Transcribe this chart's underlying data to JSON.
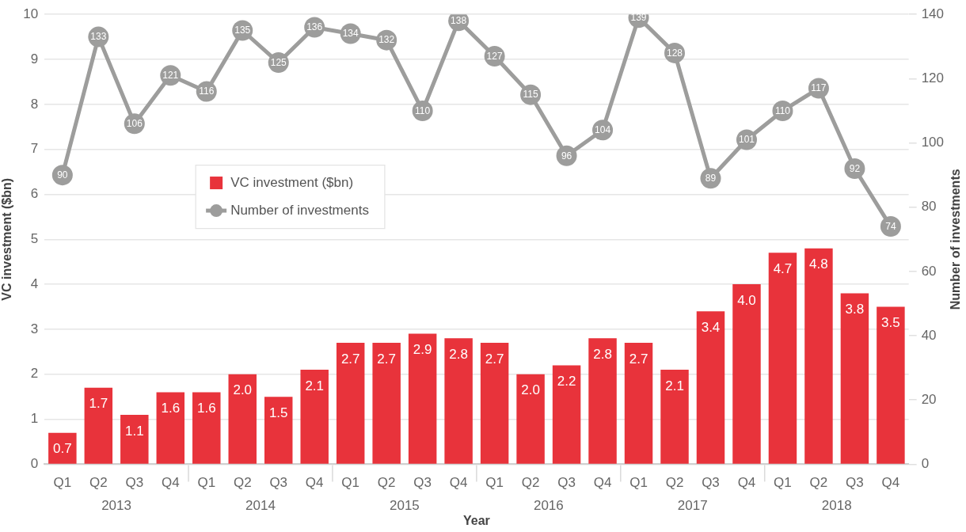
{
  "chart_data": {
    "type": "bar",
    "xlabel": "Year",
    "ylabel": "VC investment ($bn)",
    "y2label": "Number of investments",
    "categories": [
      "Q1",
      "Q2",
      "Q3",
      "Q4",
      "Q1",
      "Q2",
      "Q3",
      "Q4",
      "Q1",
      "Q2",
      "Q3",
      "Q4",
      "Q1",
      "Q2",
      "Q3",
      "Q4",
      "Q1",
      "Q2",
      "Q3",
      "Q4",
      "Q1",
      "Q2",
      "Q3",
      "Q4"
    ],
    "annotations": [
      "2013",
      "2014",
      "2015",
      "2016",
      "2017",
      "2018"
    ],
    "series": [
      {
        "name": "VC investment ($bn)",
        "type": "bar",
        "color": "#e8333b",
        "values": [
          0.7,
          1.7,
          1.1,
          1.6,
          1.6,
          2.0,
          1.5,
          2.1,
          2.7,
          2.7,
          2.9,
          2.8,
          2.7,
          2.0,
          2.2,
          2.8,
          2.7,
          2.1,
          3.4,
          4.0,
          4.7,
          4.8,
          3.8,
          3.5
        ],
        "value_labels": [
          "0.7",
          "1.7",
          "1.1",
          "1.6",
          "1.6",
          "2.0",
          "1.5",
          "2.1",
          "2.7",
          "2.7",
          "2.9",
          "2.8",
          "2.7",
          "2.0",
          "2.2",
          "2.8",
          "2.7",
          "2.1",
          "3.4",
          "4.0",
          "4.7",
          "4.8",
          "3.8",
          "3.5"
        ]
      },
      {
        "name": "Number of investments",
        "type": "line",
        "axis": "y2",
        "color": "#9d9d9c",
        "values": [
          90,
          133,
          106,
          121,
          116,
          135,
          125,
          136,
          134,
          132,
          110,
          138,
          127,
          115,
          96,
          104,
          139,
          128,
          89,
          101,
          110,
          117,
          92,
          74
        ]
      }
    ],
    "ylim": [
      0,
      10
    ],
    "yticks": [
      0,
      1,
      2,
      3,
      4,
      5,
      6,
      7,
      8,
      9,
      10
    ],
    "y2lim": [
      0,
      140
    ],
    "y2ticks": [
      0,
      20,
      40,
      60,
      80,
      100,
      120,
      140
    ],
    "grid": "y",
    "legend": "left",
    "marker": "circle",
    "data_labels": true
  }
}
